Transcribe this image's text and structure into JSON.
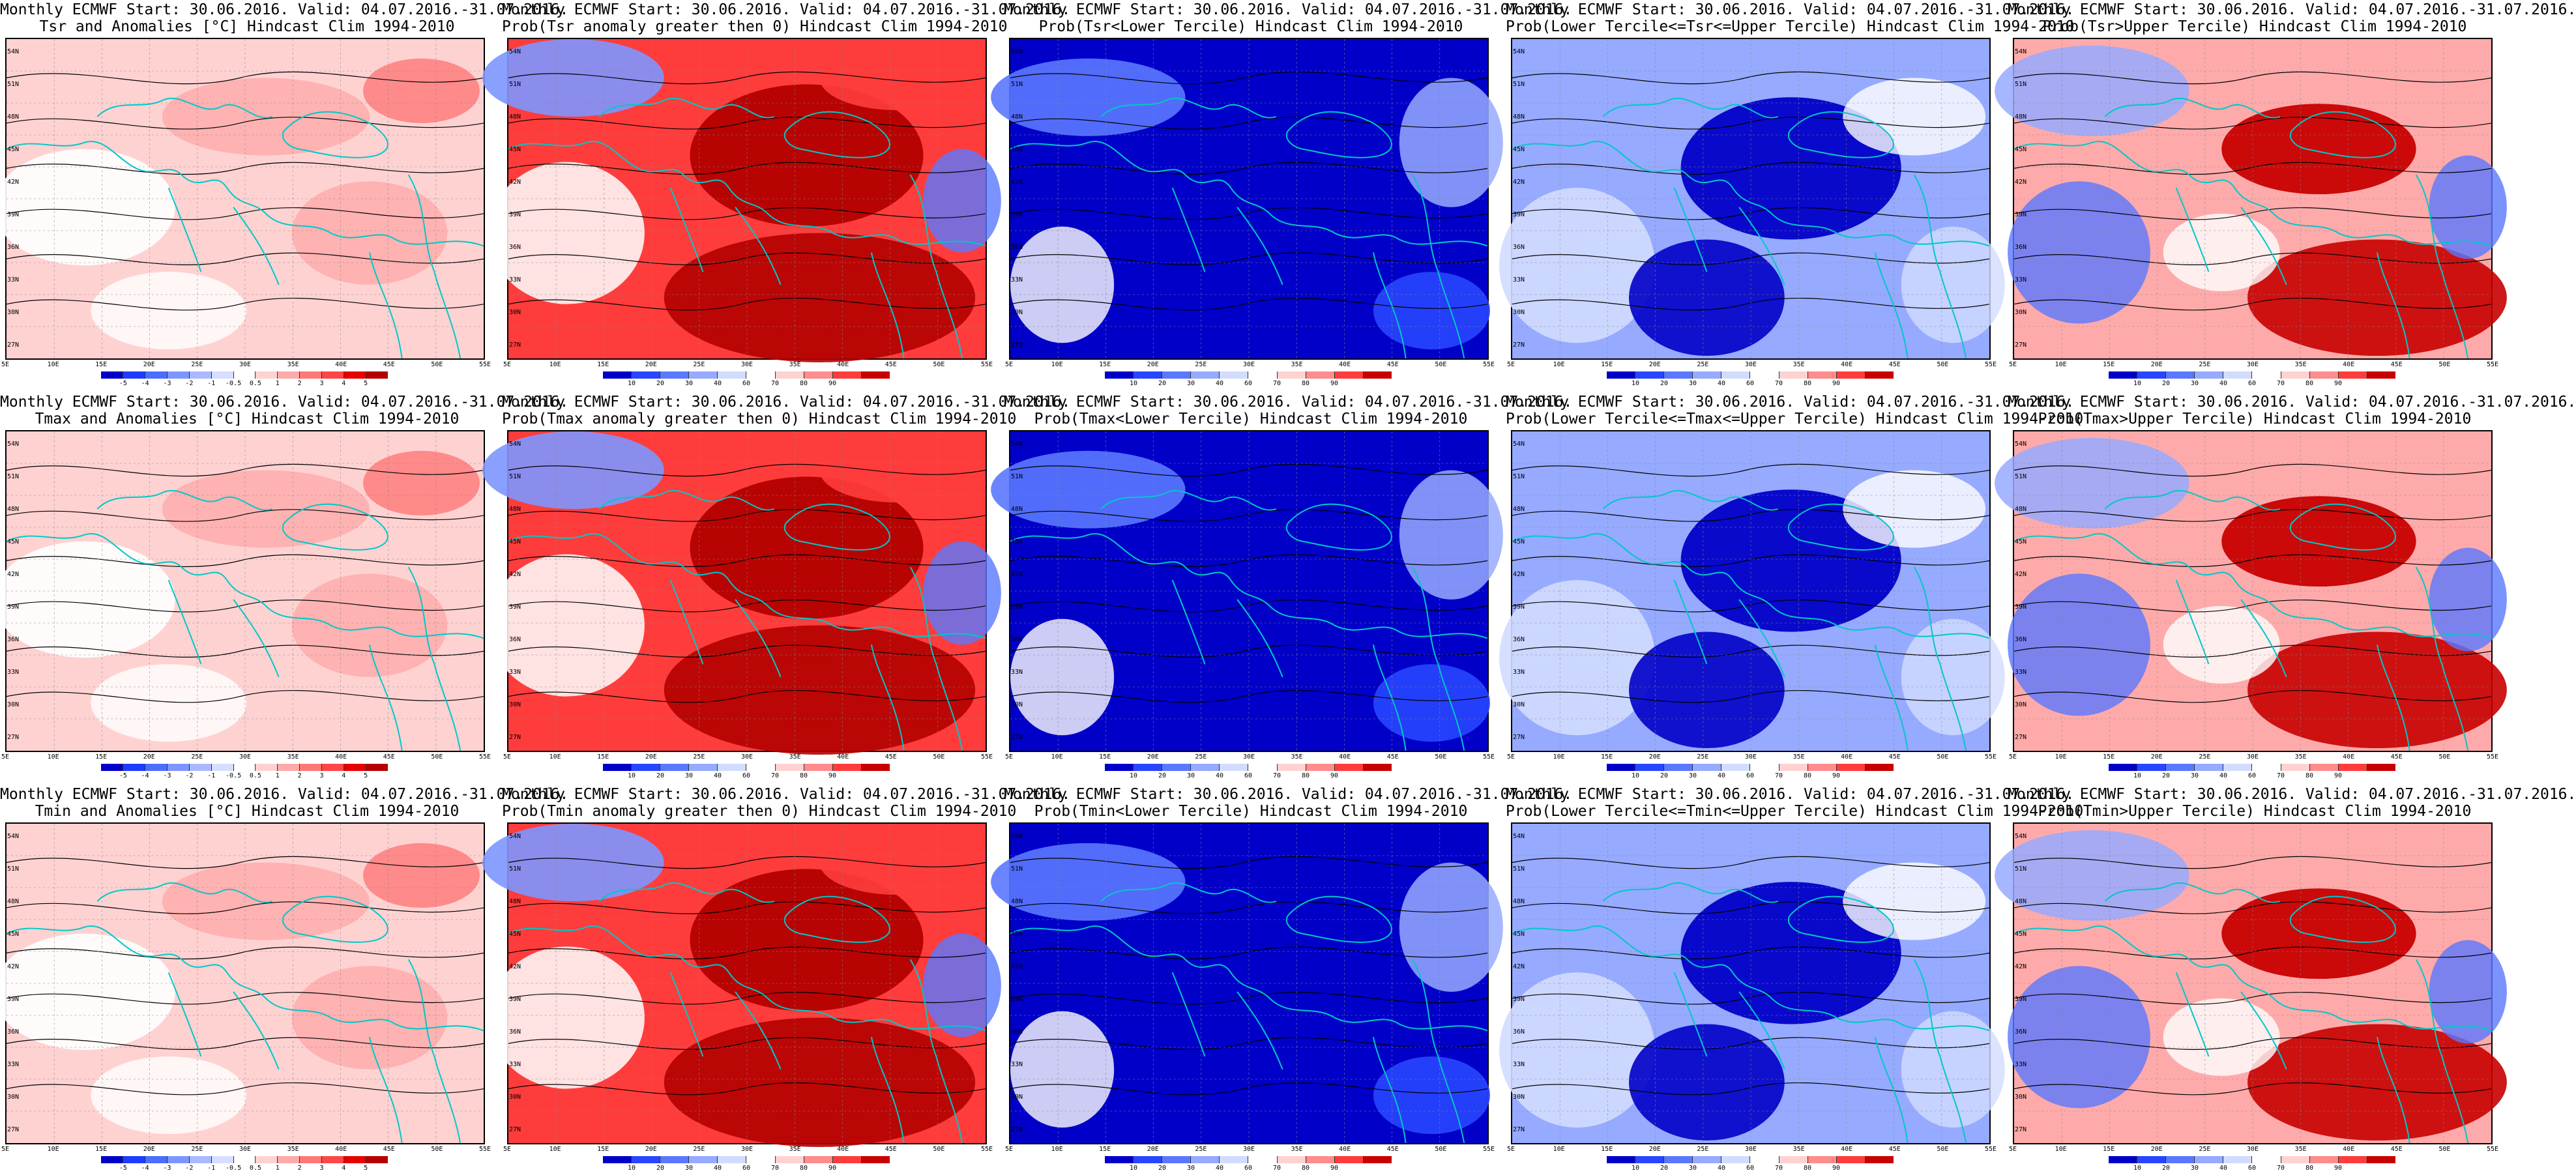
{
  "columns": [
    {
      "type": "anomaly",
      "var": [
        "Tsr",
        "Tmax",
        "Tmin"
      ]
    },
    {
      "type": "prob_gt0"
    },
    {
      "type": "prob_lower"
    },
    {
      "type": "prob_middle"
    },
    {
      "type": "prob_upper"
    }
  ],
  "panels": [
    {
      "title1": "Monthly ECMWF Start: 30.06.2016. Valid: 04.07.2016.-31.07.2016.",
      "title2": "Tsr and Anomalies [°C] Hindcast Clim 1994-2010",
      "kind": "anom"
    },
    {
      "title1": "Monthly ECMWF Start: 30.06.2016. Valid: 04.07.2016.-31.07.2016.",
      "title2": "Prob(Tsr anomaly greater then 0) Hindcast Clim 1994-2010",
      "kind": "gt0"
    },
    {
      "title1": "Monthly ECMWF Start: 30.06.2016. Valid: 04.07.2016.-31.07.2016.",
      "title2": "Prob(Tsr<Lower Tercile) Hindcast Clim 1994-2010",
      "kind": "lower"
    },
    {
      "title1": "Monthly ECMWF Start: 30.06.2016. Valid: 04.07.2016.-31.07.2016.",
      "title2": "Prob(Lower Tercile<=Tsr<=Upper Tercile) Hindcast Clim 1994-2010",
      "kind": "middle"
    },
    {
      "title1": "Monthly ECMWF Start: 30.06.2016. Valid: 04.07.2016.-31.07.2016.",
      "title2": "Prob(Tsr>Upper Tercile) Hindcast Clim 1994-2010",
      "kind": "upper"
    },
    {
      "title1": "Monthly ECMWF Start: 30.06.2016. Valid: 04.07.2016.-31.07.2016.",
      "title2": "Tmax and Anomalies [°C] Hindcast Clim 1994-2010",
      "kind": "anom"
    },
    {
      "title1": "Monthly ECMWF Start: 30.06.2016. Valid: 04.07.2016.-31.07.2016.",
      "title2": "Prob(Tmax anomaly greater then 0) Hindcast Clim 1994-2010",
      "kind": "gt0"
    },
    {
      "title1": "Monthly ECMWF Start: 30.06.2016. Valid: 04.07.2016.-31.07.2016.",
      "title2": "Prob(Tmax<Lower Tercile) Hindcast Clim 1994-2010",
      "kind": "lower"
    },
    {
      "title1": "Monthly ECMWF Start: 30.06.2016. Valid: 04.07.2016.-31.07.2016.",
      "title2": "Prob(Lower Tercile<=Tmax<=Upper Tercile) Hindcast Clim 1994-2010",
      "kind": "middle"
    },
    {
      "title1": "Monthly ECMWF Start: 30.06.2016. Valid: 04.07.2016.-31.07.2016.",
      "title2": "Prob(Tmax>Upper Tercile) Hindcast Clim 1994-2010",
      "kind": "upper"
    },
    {
      "title1": "Monthly ECMWF Start: 30.06.2016. Valid: 04.07.2016.-31.07.2016.",
      "title2": "Tmin and Anomalies [°C] Hindcast Clim 1994-2010",
      "kind": "anom"
    },
    {
      "title1": "Monthly ECMWF Start: 30.06.2016. Valid: 04.07.2016.-31.07.2016.",
      "title2": "Prob(Tmin anomaly greater then 0) Hindcast Clim 1994-2010",
      "kind": "gt0"
    },
    {
      "title1": "Monthly ECMWF Start: 30.06.2016. Valid: 04.07.2016.-31.07.2016.",
      "title2": "Prob(Tmin<Lower Tercile) Hindcast Clim 1994-2010",
      "kind": "lower"
    },
    {
      "title1": "Monthly ECMWF Start: 30.06.2016. Valid: 04.07.2016.-31.07.2016.",
      "title2": "Prob(Lower Tercile<=Tmin<=Upper Tercile) Hindcast Clim 1994-2010",
      "kind": "middle"
    },
    {
      "title1": "Monthly ECMWF Start: 30.06.2016. Valid: 04.07.2016.-31.07.2016.",
      "title2": "Prob(Tmin>Upper Tercile) Hindcast Clim 1994-2010",
      "kind": "upper"
    }
  ],
  "axes": {
    "lat_labels": [
      "54N",
      "51N",
      "48N",
      "45N",
      "42N",
      "39N",
      "36N",
      "33N",
      "30N",
      "27N"
    ],
    "lon_labels": [
      "5E",
      "10E",
      "15E",
      "20E",
      "25E",
      "30E",
      "35E",
      "40E",
      "45E",
      "50E",
      "55E"
    ]
  },
  "legends": {
    "anom": {
      "ticks": [
        "-5",
        "-4",
        "-3",
        "-2",
        "-1",
        "-0.5",
        "0.5",
        "1",
        "2",
        "3",
        "4",
        "5"
      ],
      "colors": [
        "#0000c8",
        "#1e3cff",
        "#4b6eff",
        "#7d96ff",
        "#aab9ff",
        "#d7deff",
        "#ffffff",
        "#ffd2d2",
        "#ffaaaa",
        "#ff7878",
        "#ff4646",
        "#e60000",
        "#b40000"
      ]
    },
    "prob": {
      "ticks": [
        "10",
        "20",
        "30",
        "40",
        "60",
        "70",
        "80",
        "90"
      ],
      "colors": [
        "#0000c8",
        "#2846ff",
        "#5a78ff",
        "#96aaff",
        "#d2dcff",
        "#ffffff",
        "#ffd2d2",
        "#ff8c8c",
        "#ff3c3c",
        "#c80000"
      ]
    }
  },
  "palette": {
    "coast": "#00c8c8",
    "contour": "#000000",
    "anom_bg": "#ffd2d2",
    "gt0_bg": "#ff3c3c",
    "gt0_deep": "#b40000",
    "lower_bg": "#0000c8",
    "lower_mid": "#2846ff",
    "middle_bg": "#96aaff",
    "middle_deep": "#0000c8",
    "upper_bg": "#ffaaaa",
    "upper_deep": "#c80000"
  }
}
